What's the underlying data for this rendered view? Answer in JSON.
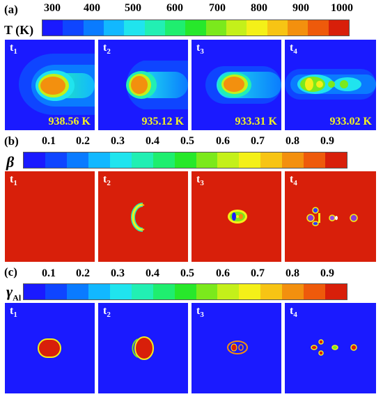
{
  "colors": [
    "#1a1aff",
    "#0f45ff",
    "#0a7bff",
    "#12b8ff",
    "#20e4ee",
    "#22efb3",
    "#1fee6f",
    "#27e82b",
    "#7be91c",
    "#c4f01a",
    "#f4f018",
    "#f7c414",
    "#f3900e",
    "#ee5a0b",
    "#d81f0a"
  ],
  "section_a": {
    "label": "(a)",
    "symbol": "T (K)",
    "ticks": [
      "300",
      "400",
      "500",
      "600",
      "700",
      "800",
      "900",
      "1000"
    ],
    "panels": [
      {
        "label": "t",
        "sub": "1",
        "temp": "938.56 K"
      },
      {
        "label": "t",
        "sub": "2",
        "temp": "935.12 K"
      },
      {
        "label": "t",
        "sub": "3",
        "temp": "933.31 K"
      },
      {
        "label": "t",
        "sub": "4",
        "temp": "933.02 K"
      }
    ]
  },
  "section_b": {
    "label": "(b)",
    "symbol": "β",
    "ticks": [
      "0.1",
      "0.2",
      "0.3",
      "0.4",
      "0.5",
      "0.6",
      "0.7",
      "0.8",
      "0.9"
    ],
    "panels": [
      {
        "label": "t",
        "sub": "1"
      },
      {
        "label": "t",
        "sub": "2"
      },
      {
        "label": "t",
        "sub": "3"
      },
      {
        "label": "t",
        "sub": "4"
      }
    ]
  },
  "section_c": {
    "label": "(c)",
    "symbol": "γ",
    "symbol_sub": "Al",
    "ticks": [
      "0.1",
      "0.2",
      "0.3",
      "0.4",
      "0.5",
      "0.6",
      "0.7",
      "0.8",
      "0.9"
    ],
    "panels": [
      {
        "label": "t",
        "sub": "1"
      },
      {
        "label": "t",
        "sub": "2"
      },
      {
        "label": "t",
        "sub": "3"
      },
      {
        "label": "t",
        "sub": "4"
      }
    ]
  }
}
